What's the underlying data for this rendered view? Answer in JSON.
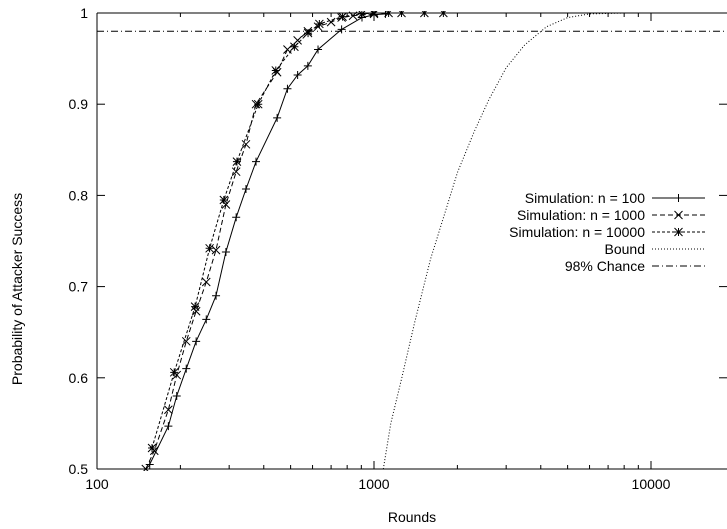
{
  "chart_data": {
    "type": "line",
    "title": "",
    "xlabel": "Rounds",
    "ylabel": "Probability of Attacker Success",
    "xscale": "log",
    "xlim": [
      100,
      20000
    ],
    "ylim": [
      0.5,
      1.0
    ],
    "x_ticks": [
      100,
      1000,
      10000
    ],
    "x_tick_labels": [
      "100",
      "1000",
      "10000"
    ],
    "y_ticks": [
      0.5,
      0.6,
      0.7,
      0.8,
      0.9,
      1.0
    ],
    "y_tick_labels": [
      "0.5",
      "0.6",
      "0.7",
      "0.8",
      "0.9",
      "1"
    ],
    "grid": false,
    "legend_position": "right",
    "series": [
      {
        "name": "Simulation: n = 100",
        "style": "solid",
        "marker": "plus",
        "x": [
          155,
          181,
          194,
          210,
          228,
          248,
          269,
          292,
          318,
          345,
          375,
          447,
          487,
          530,
          577,
          628,
          764,
          905,
          1000,
          1100
        ],
        "y": [
          0.505,
          0.547,
          0.58,
          0.61,
          0.64,
          0.664,
          0.69,
          0.738,
          0.776,
          0.807,
          0.837,
          0.885,
          0.917,
          0.932,
          0.942,
          0.96,
          0.982,
          0.995,
          0.998,
          0.999
        ]
      },
      {
        "name": "Simulation: n = 1000",
        "style": "dashed",
        "marker": "x",
        "x": [
          150,
          161,
          181,
          194,
          210,
          228,
          248,
          269,
          292,
          318,
          345,
          375,
          447,
          487,
          530,
          577,
          628,
          700,
          764,
          840,
          1000
        ],
        "y": [
          0.5,
          0.52,
          0.565,
          0.603,
          0.64,
          0.673,
          0.705,
          0.74,
          0.79,
          0.826,
          0.856,
          0.9,
          0.935,
          0.96,
          0.97,
          0.98,
          0.985,
          0.99,
          0.995,
          0.997,
          0.999
        ]
      },
      {
        "name": "Simulation: n = 10000",
        "style": "dashed-fine",
        "marker": "asterisk",
        "x": [
          158,
          190,
          226,
          255,
          287,
          320,
          382,
          442,
          516,
          578,
          635,
          770,
          904,
          1000,
          1129,
          1257,
          1520,
          1780
        ],
        "y": [
          0.523,
          0.606,
          0.678,
          0.742,
          0.795,
          0.837,
          0.9,
          0.937,
          0.963,
          0.978,
          0.988,
          0.996,
          0.999,
          1.0,
          1.0,
          1.0,
          1.0,
          1.0
        ]
      },
      {
        "name": "Bound",
        "style": "dotted",
        "marker": "none",
        "x": [
          1080,
          1150,
          1260,
          1400,
          1600,
          1800,
          2000,
          2300,
          2600,
          3000,
          3500,
          4200,
          5000,
          6000,
          8000,
          20000
        ],
        "y": [
          0.5,
          0.55,
          0.6,
          0.66,
          0.73,
          0.78,
          0.825,
          0.87,
          0.905,
          0.94,
          0.965,
          0.985,
          0.995,
          0.999,
          1.0,
          1.0
        ]
      },
      {
        "name": "98% Chance",
        "style": "dash-dot",
        "marker": "none",
        "x": [
          100,
          20000
        ],
        "y": [
          0.98,
          0.98
        ]
      }
    ]
  }
}
